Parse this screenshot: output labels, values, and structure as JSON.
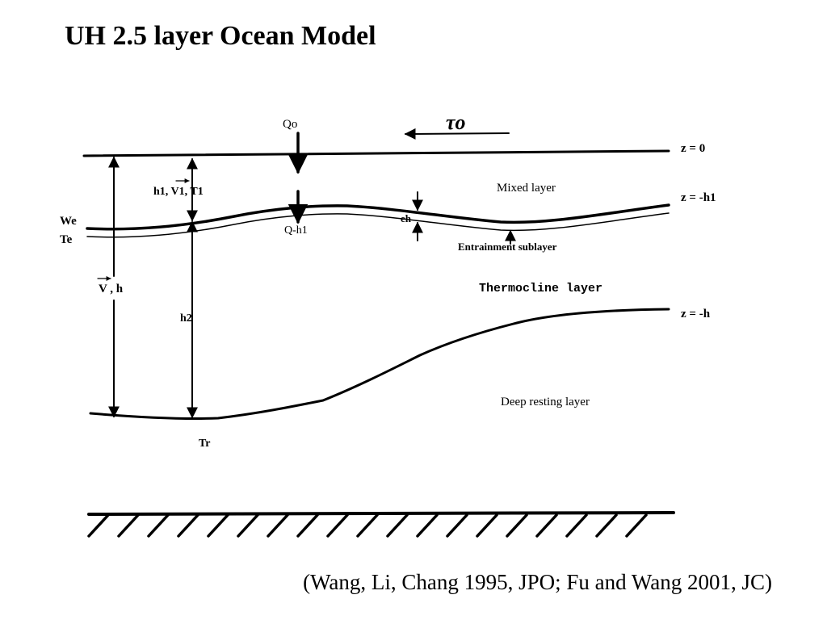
{
  "slide": {
    "title": "UH 2.5 layer Ocean Model",
    "citation": "(Wang, Li, Chang 1995, JPO; Fu and Wang 2001, JC)"
  },
  "diagram": {
    "heat_flux_top": "Qo",
    "wind_stress": "τo",
    "surface_level": "z = 0",
    "mixed_layer_level": "z = -h1",
    "thermocline_level": "z = -h",
    "mixed_layer_vars": "h1, V1, T1",
    "entrainment_velocity": "We",
    "entrainment_temperature": "Te",
    "heat_flux_bottom": "Q-h1",
    "sublayer_thickness": "eh",
    "total_vars": "V , h",
    "lower_thickness": "h2",
    "resting_temperature": "Tr",
    "mixed_layer_name": "Mixed layer",
    "entrainment_sublayer_name": "Entrainment sublayer",
    "thermocline_layer_name": "Thermocline layer",
    "deep_layer_name": "Deep resting layer"
  }
}
